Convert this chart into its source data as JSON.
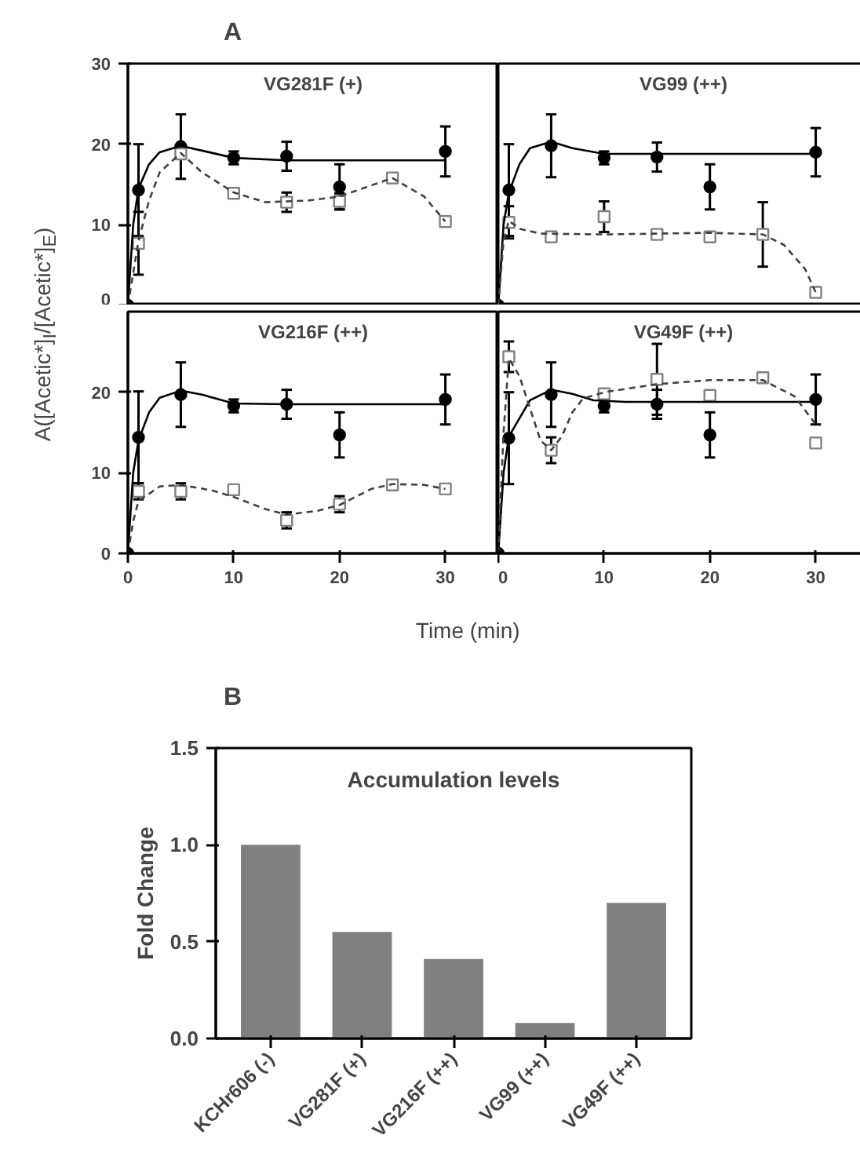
{
  "chart_data": [
    {
      "type": "scatter",
      "title": "VG281F (+)",
      "ylabel": "A([Acetic*]$_{I}$/[Acetic*]$_{E}$)",
      "annotations": [
        "A"
      ],
      "xlim": [
        0,
        35
      ],
      "ylim": [
        0,
        30
      ],
      "yticks": [
        0,
        10,
        20,
        30
      ],
      "tick_labels": "y",
      "series": [
        {
          "type": "scatter",
          "color": "#000000",
          "marker": "circle",
          "x": [
            0,
            1,
            5,
            10,
            15,
            20,
            30
          ],
          "values": [
            0,
            14.3,
            19.7,
            18.3,
            18.5,
            14.7,
            19.1
          ],
          "errors": [
            null,
            5.7,
            4,
            0.8,
            1.8,
            2.8,
            3.1
          ]
        },
        {
          "type": "scatter",
          "color": "#808080",
          "marker": "square",
          "x": [
            1,
            5,
            10,
            15,
            20,
            25,
            30
          ],
          "values": [
            7.7,
            18.8,
            13.9,
            12.8,
            12.9,
            15.8,
            10.4
          ],
          "errors": [
            3.9,
            null,
            null,
            1.2,
            1.0,
            null,
            null
          ]
        },
        {
          "type": "line",
          "color": "#000000",
          "line_style": "solid",
          "x": [
            0,
            0.5,
            1,
            2,
            3,
            5,
            7,
            10,
            15,
            20,
            30
          ],
          "values": [
            0,
            10,
            14.5,
            17.5,
            19,
            19.8,
            19.2,
            18.3,
            18,
            18,
            18
          ]
        },
        {
          "type": "line",
          "color": "#404040",
          "line_style": "dashed",
          "x": [
            0,
            1,
            2,
            3,
            5,
            7,
            10,
            13,
            17,
            20,
            25,
            28,
            30
          ],
          "values": [
            0,
            8,
            13,
            16.5,
            18.9,
            16.5,
            14,
            12.8,
            13,
            13.5,
            15.8,
            13.5,
            10.4
          ]
        }
      ]
    },
    {
      "type": "scatter",
      "title": "VG99 (++)",
      "xlim": [
        0,
        35
      ],
      "ylim": [
        0,
        30
      ],
      "tick_labels": false,
      "series": [
        {
          "type": "scatter",
          "color": "#000000",
          "marker": "circle",
          "x": [
            0,
            1,
            5,
            10,
            15,
            20,
            30
          ],
          "values": [
            0,
            14.3,
            19.8,
            18.3,
            18.4,
            14.7,
            19.0
          ],
          "errors": [
            null,
            5.7,
            3.9,
            0.8,
            1.8,
            2.8,
            3
          ]
        },
        {
          "type": "scatter",
          "color": "#808080",
          "marker": "square",
          "x": [
            1,
            5,
            10,
            15,
            20,
            25,
            30
          ],
          "values": [
            10.3,
            8.5,
            11,
            8.8,
            8.5,
            8.8,
            1.6
          ],
          "errors": [
            2,
            null,
            1.9,
            null,
            null,
            4,
            null
          ]
        },
        {
          "type": "line",
          "color": "#000000",
          "line_style": "solid",
          "x": [
            0,
            0.5,
            1,
            2,
            3,
            5,
            7,
            10,
            15,
            30
          ],
          "values": [
            0,
            10,
            14,
            17.5,
            19.5,
            20.3,
            19.5,
            18.8,
            18.8,
            18.8
          ]
        },
        {
          "type": "line",
          "color": "#404040",
          "line_style": "dashed",
          "x": [
            0,
            0.5,
            1,
            2,
            4,
            10,
            20,
            25,
            27,
            29,
            30
          ],
          "values": [
            0,
            8,
            10.5,
            9.5,
            8.9,
            8.8,
            9,
            8.8,
            7.5,
            4.5,
            1.6
          ]
        }
      ]
    },
    {
      "type": "scatter",
      "title": "VG216F (++)",
      "xlabel": "Time (min)",
      "xlim": [
        0,
        35
      ],
      "ylim": [
        0,
        30
      ],
      "xticks": [
        0,
        10,
        20,
        30
      ],
      "yticks": [
        0,
        10,
        20
      ],
      "series": [
        {
          "type": "scatter",
          "color": "#000000",
          "marker": "circle",
          "x": [
            0,
            1,
            5,
            10,
            15,
            20,
            30
          ],
          "values": [
            0,
            14.4,
            19.7,
            18.3,
            18.5,
            14.7,
            19.1
          ],
          "errors": [
            null,
            5.7,
            4,
            0.8,
            1.8,
            2.8,
            3.1
          ]
        },
        {
          "type": "scatter",
          "color": "#808080",
          "marker": "square",
          "x": [
            1,
            5,
            10,
            15,
            20,
            25,
            30
          ],
          "values": [
            7.7,
            7.7,
            7.9,
            4.1,
            6.1,
            8.5,
            8.0
          ],
          "errors": [
            1,
            1,
            null,
            1,
            1,
            null,
            null
          ]
        },
        {
          "type": "line",
          "color": "#000000",
          "line_style": "solid",
          "x": [
            0,
            0.5,
            1,
            2,
            3,
            5,
            7,
            10,
            15,
            30
          ],
          "values": [
            0,
            10,
            14,
            17.5,
            19.3,
            20.2,
            19.7,
            18.6,
            18.5,
            18.5
          ]
        },
        {
          "type": "line",
          "color": "#404040",
          "line_style": "dashed",
          "x": [
            0,
            0.5,
            1,
            3,
            5,
            8,
            10,
            13,
            15,
            18,
            20,
            23,
            25,
            28,
            30
          ],
          "values": [
            0,
            4,
            6.5,
            8.3,
            8.5,
            7.8,
            7,
            5.5,
            4.8,
            5.3,
            6,
            8,
            8.6,
            8.5,
            8.0
          ]
        }
      ]
    },
    {
      "type": "scatter",
      "title": "VG49F (++)",
      "xlim": [
        0,
        35
      ],
      "ylim": [
        0,
        30
      ],
      "xticks": [
        0,
        10,
        20,
        30
      ],
      "tick_labels": "x",
      "series": [
        {
          "type": "scatter",
          "color": "#000000",
          "marker": "circle",
          "x": [
            0,
            1,
            5,
            10,
            15,
            20,
            30
          ],
          "values": [
            0,
            14.3,
            19.7,
            18.3,
            18.5,
            14.7,
            19.1
          ],
          "errors": [
            null,
            5.7,
            4,
            0.8,
            1.8,
            2.8,
            3.1
          ]
        },
        {
          "type": "scatter",
          "color": "#808080",
          "marker": "square",
          "x": [
            1,
            5,
            10,
            15,
            20,
            25,
            30
          ],
          "values": [
            24.4,
            12.8,
            19.8,
            21.6,
            19.6,
            21.8,
            13.7
          ],
          "errors": [
            1.9,
            1.6,
            null,
            4.4,
            null,
            null,
            0.6
          ]
        },
        {
          "type": "line",
          "color": "#000000",
          "line_style": "solid",
          "x": [
            0,
            0.5,
            1,
            3,
            5,
            7,
            9,
            12,
            30
          ],
          "values": [
            0,
            10,
            14.5,
            19,
            20.3,
            19.8,
            19,
            18.8,
            18.8
          ]
        },
        {
          "type": "line",
          "color": "#404040",
          "line_style": "dashed",
          "x": [
            0,
            0.5,
            1,
            2,
            3,
            4,
            5,
            6,
            7,
            8,
            10,
            15,
            20,
            25,
            28,
            30
          ],
          "values": [
            0,
            15,
            24.2,
            22,
            18,
            14,
            12.8,
            14.5,
            17.5,
            19.2,
            20,
            21,
            21.5,
            21.5,
            19.5,
            16
          ]
        }
      ]
    },
    {
      "type": "bar",
      "title": "Accumulation levels",
      "ylabel": "Fold Change",
      "annotations": [
        "B"
      ],
      "categories": [
        "KCHr606 (-)",
        "VG281F (+)",
        "VG216F (++)",
        "VG99 (++)",
        "VG49F (++)"
      ],
      "values": [
        1.0,
        0.55,
        0.41,
        0.08,
        0.7
      ],
      "color": "#808080",
      "ylim": [
        0,
        1.5
      ],
      "yticks": [
        {
          "value": 0,
          "label": "0.0"
        },
        {
          "value": 0.5,
          "label": "0.5"
        },
        {
          "value": 1,
          "label": "1.0"
        },
        {
          "value": 1.5,
          "label": "1.5"
        }
      ]
    }
  ]
}
